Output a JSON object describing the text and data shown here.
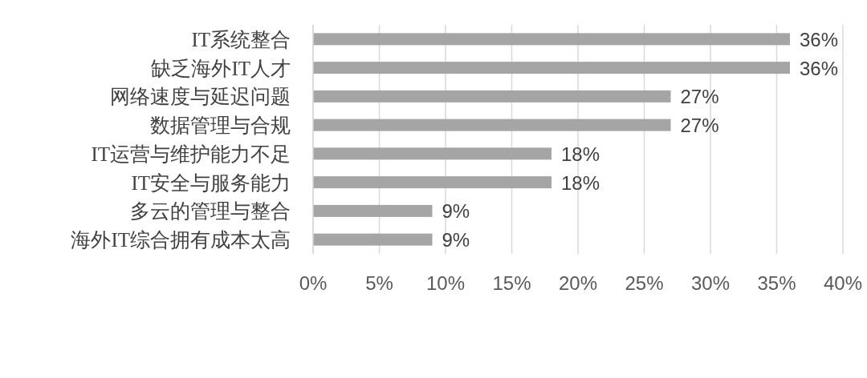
{
  "chart_data": {
    "type": "bar",
    "orientation": "horizontal",
    "categories": [
      "IT系统整合",
      "缺乏海外IT人才",
      "网络速度与延迟问题",
      "数据管理与合规",
      "IT运营与维护能力不足",
      "IT安全与服务能力",
      "多云的管理与整合",
      "海外IT综合拥有成本太高"
    ],
    "values": [
      36,
      36,
      27,
      27,
      18,
      18,
      9,
      9
    ],
    "color": "#a5a5a5",
    "xlim": [
      0,
      40
    ],
    "xticks": [
      {
        "value": 0,
        "label": "0%"
      },
      {
        "value": 5,
        "label": "5%"
      },
      {
        "value": 10,
        "label": "10%"
      },
      {
        "value": 15,
        "label": "15%"
      },
      {
        "value": 20,
        "label": "20%"
      },
      {
        "value": 25,
        "label": "25%"
      },
      {
        "value": 30,
        "label": "30%"
      },
      {
        "value": 35,
        "label": "35%"
      },
      {
        "value": 40,
        "label": "40%"
      }
    ],
    "value_labels": [
      "36%",
      "36%",
      "27%",
      "27%",
      "18%",
      "18%",
      "9%",
      "9%"
    ],
    "grid": "x"
  }
}
